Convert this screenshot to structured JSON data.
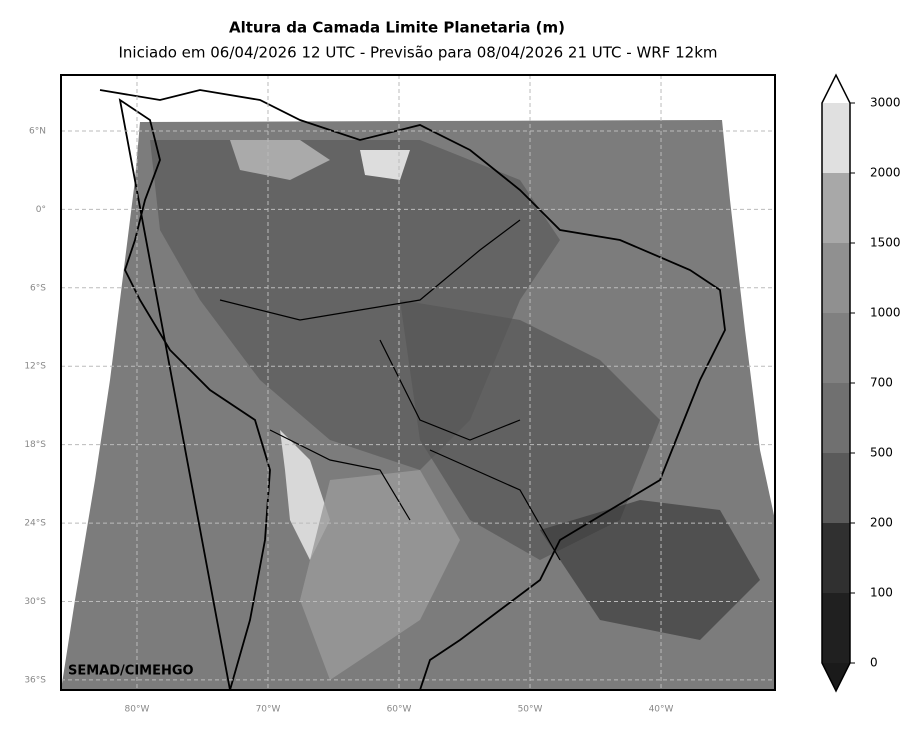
{
  "title": "Altura da Camada Limite Planetaria (m)",
  "subtitle": "Iniciado em 06/04/2026 12 UTC - Previsão para 08/04/2026 21 UTC - WRF 12km",
  "credit": "SEMAD/CIMEHGO",
  "map": {
    "latlim": [
      -36.77,
      10.28
    ],
    "lonlim": [
      -85.8,
      -31.3
    ],
    "lat_ticks": [
      {
        "value": 6,
        "label": "6°N"
      },
      {
        "value": 0,
        "label": "0°"
      },
      {
        "value": -6,
        "label": "6°S"
      },
      {
        "value": -12,
        "label": "12°S"
      },
      {
        "value": -18,
        "label": "18°S"
      },
      {
        "value": -24,
        "label": "24°S"
      },
      {
        "value": -30,
        "label": "30°S"
      },
      {
        "value": -36,
        "label": "36°S"
      }
    ],
    "lon_ticks": [
      {
        "value": -80,
        "label": "80°W"
      },
      {
        "value": -70,
        "label": "70°W"
      },
      {
        "value": -60,
        "label": "60°W"
      },
      {
        "value": -50,
        "label": "50°W"
      },
      {
        "value": -40,
        "label": "40°W"
      }
    ]
  },
  "colorbar": {
    "ticks": [
      0,
      100,
      200,
      500,
      700,
      1000,
      1500,
      2000,
      3000
    ],
    "colors": [
      "#202020",
      "#303030",
      "#5a5a5a",
      "#707070",
      "#808080",
      "#909090",
      "#a8a8a8",
      "#e0e0e0"
    ],
    "under_color": "#1a1a1a",
    "over_color": "#ffffff"
  }
}
